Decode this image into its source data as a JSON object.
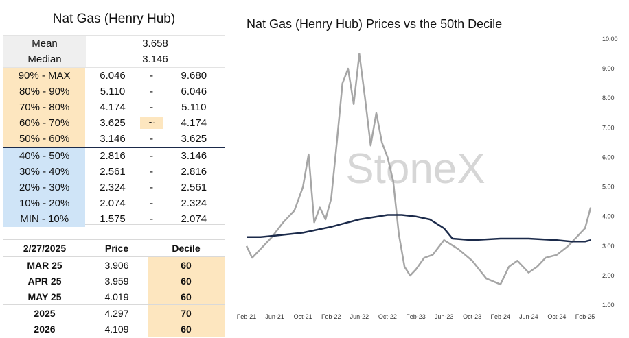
{
  "stats": {
    "title": "Nat Gas (Henry Hub)",
    "mean_label": "Mean",
    "mean_value": "3.658",
    "median_label": "Median",
    "median_value": "3.146",
    "rows": [
      {
        "label": "90% - MAX",
        "lo": "6.046",
        "sep": "-",
        "hi": "9.680",
        "zone": "upper"
      },
      {
        "label": "80% - 90%",
        "lo": "5.110",
        "sep": "-",
        "hi": "6.046",
        "zone": "upper"
      },
      {
        "label": "70% - 80%",
        "lo": "4.174",
        "sep": "-",
        "hi": "5.110",
        "zone": "upper"
      },
      {
        "label": "60% - 70%",
        "lo": "3.625",
        "sep": "~",
        "hi": "4.174",
        "zone": "upper"
      },
      {
        "label": "50% - 60%",
        "lo": "3.146",
        "sep": "-",
        "hi": "3.625",
        "zone": "upper"
      },
      {
        "label": "40% - 50%",
        "lo": "2.816",
        "sep": "-",
        "hi": "3.146",
        "zone": "lower"
      },
      {
        "label": "30% - 40%",
        "lo": "2.561",
        "sep": "-",
        "hi": "2.816",
        "zone": "lower"
      },
      {
        "label": "20% - 30%",
        "lo": "2.324",
        "sep": "-",
        "hi": "2.561",
        "zone": "lower"
      },
      {
        "label": "10% - 20%",
        "lo": "2.074",
        "sep": "-",
        "hi": "2.324",
        "zone": "lower"
      },
      {
        "label": "MIN - 10%",
        "lo": "1.575",
        "sep": "-",
        "hi": "2.074",
        "zone": "lower"
      }
    ],
    "colors": {
      "upper": "#fde6bf",
      "lower": "#cfe4f7"
    }
  },
  "futures": {
    "date": "2/27/2025",
    "price_header": "Price",
    "decile_header": "Decile",
    "rows": [
      {
        "contract": "MAR 25",
        "price": "3.906",
        "decile": "60"
      },
      {
        "contract": "APR 25",
        "price": "3.959",
        "decile": "60"
      },
      {
        "contract": "MAY 25",
        "price": "4.019",
        "decile": "60"
      },
      {
        "contract": "2025",
        "price": "4.297",
        "decile": "70"
      },
      {
        "contract": "2026",
        "price": "4.109",
        "decile": "60"
      }
    ]
  },
  "chart_data": {
    "type": "line",
    "title": "Nat Gas (Henry Hub) Prices vs the 50th Decile",
    "watermark": "StoneX",
    "x_ticks": [
      "Feb-21",
      "Jun-21",
      "Oct-21",
      "Feb-22",
      "Jun-22",
      "Oct-22",
      "Feb-23",
      "Jun-23",
      "Oct-23",
      "Feb-24",
      "Jun-24",
      "Oct-24",
      "Feb-25"
    ],
    "y_ticks": [
      "10.00",
      "9.00",
      "8.00",
      "7.00",
      "6.00",
      "5.00",
      "4.00",
      "3.00",
      "2.00",
      "1.00"
    ],
    "ylim": [
      1,
      10
    ],
    "y_position": "right",
    "grid": false,
    "colors": {
      "price": "#a6a6a6",
      "decile": "#1b2a4a"
    },
    "series": [
      {
        "key": "price",
        "color": "#a6a6a6",
        "x_index": [
          0,
          0.2,
          0.5,
          0.9,
          1.3,
          1.7,
          2,
          2.2,
          2.4,
          2.6,
          2.8,
          3,
          3.2,
          3.4,
          3.6,
          3.8,
          4,
          4.2,
          4.4,
          4.6,
          4.8,
          5,
          5.2,
          5.4,
          5.6,
          5.8,
          6,
          6.3,
          6.6,
          7,
          7.5,
          8,
          8.5,
          9,
          9.3,
          9.6,
          10,
          10.3,
          10.6,
          11,
          11.4,
          11.7,
          12,
          12.2
        ],
        "values": [
          3.0,
          2.6,
          2.9,
          3.3,
          3.8,
          4.2,
          5.0,
          6.1,
          3.8,
          4.3,
          3.9,
          4.6,
          6.5,
          8.5,
          9.0,
          7.8,
          9.5,
          8.0,
          6.4,
          7.5,
          6.5,
          6.0,
          5.2,
          3.4,
          2.3,
          2.0,
          2.2,
          2.6,
          2.7,
          3.2,
          2.9,
          2.5,
          1.9,
          1.7,
          2.3,
          2.5,
          2.1,
          2.3,
          2.6,
          2.7,
          3.0,
          3.3,
          3.6,
          4.3
        ]
      },
      {
        "key": "decile",
        "color": "#1b2a4a",
        "x_index": [
          0,
          0.5,
          1,
          2,
          3,
          4,
          5,
          5.5,
          6,
          6.5,
          7,
          7.3,
          8,
          9,
          10,
          11,
          11.5,
          12,
          12.2
        ],
        "values": [
          3.3,
          3.3,
          3.35,
          3.45,
          3.65,
          3.9,
          4.05,
          4.05,
          4.0,
          3.9,
          3.6,
          3.25,
          3.2,
          3.25,
          3.25,
          3.2,
          3.15,
          3.15,
          3.2
        ]
      }
    ]
  }
}
